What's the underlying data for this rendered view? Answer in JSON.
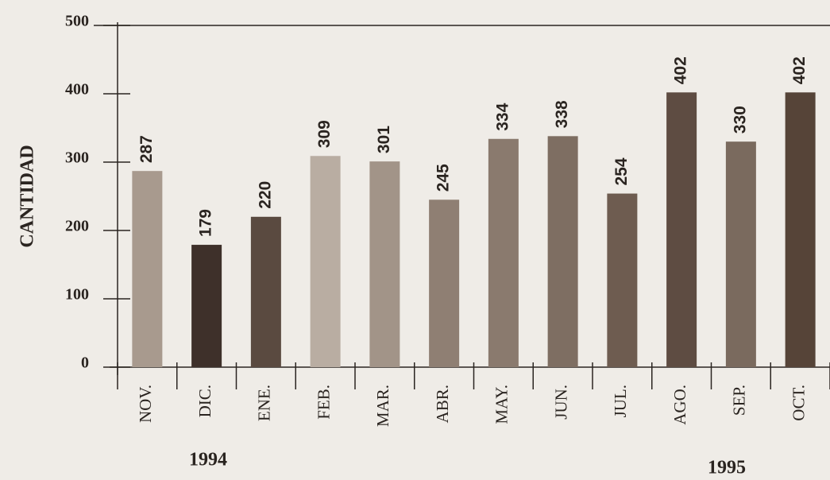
{
  "chart_data": {
    "type": "bar",
    "ylabel": "CANTIDAD",
    "categories": [
      "NOV.",
      "DIC.",
      "ENE.",
      "FEB.",
      "MAR.",
      "ABR.",
      "MAY.",
      "JUN.",
      "JUL.",
      "AGO.",
      "SEP.",
      "OCT."
    ],
    "values": [
      287,
      179,
      220,
      309,
      301,
      245,
      334,
      338,
      254,
      402,
      330,
      402
    ],
    "colors": [
      "#a89a8e",
      "#3e302a",
      "#5a4a40",
      "#b9ada2",
      "#a29488",
      "#8f7f73",
      "#8a7a6e",
      "#7e6e62",
      "#6e5c50",
      "#5e4c42",
      "#7a6a5e",
      "#564438"
    ],
    "annotations": [
      "1994",
      "1995"
    ],
    "ylim": [
      0,
      500
    ],
    "yticks": [
      0,
      100,
      200,
      300,
      400,
      500
    ],
    "grid": false
  }
}
